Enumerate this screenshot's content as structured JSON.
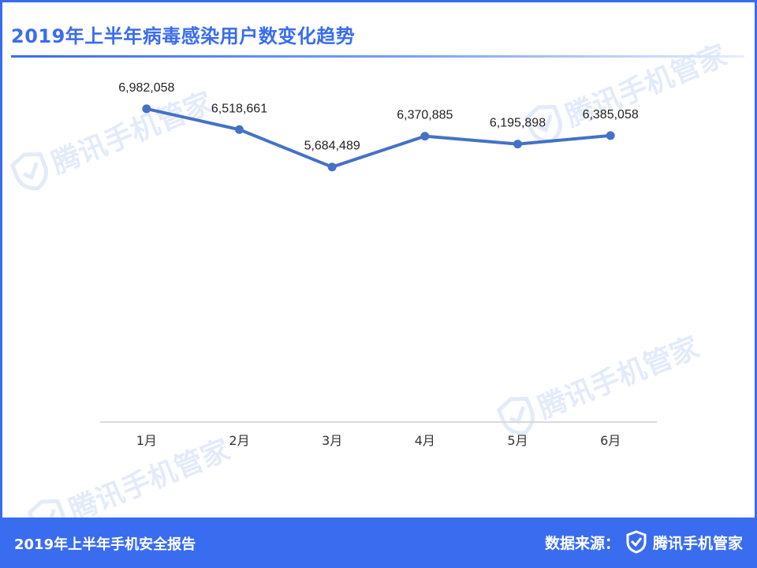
{
  "header": {
    "title": "2019年上半年病毒感染用户数变化趋势"
  },
  "watermark": {
    "text": "腾讯手机管家"
  },
  "chart_data": {
    "type": "line",
    "title": "2019年上半年病毒感染用户数变化趋势",
    "categories": [
      "1月",
      "2月",
      "3月",
      "4月",
      "5月",
      "6月"
    ],
    "series": [
      {
        "values": [
          6982058,
          6518661,
          5684489,
          6370885,
          6195898,
          6385058
        ]
      }
    ],
    "data_labels": [
      "6,982,058",
      "6,518,661",
      "5,684,489",
      "6,370,885",
      "6,195,898",
      "6,385,058"
    ],
    "ylim": [
      0,
      8000000
    ],
    "grid": false,
    "line_color": "#4472c4"
  },
  "footer": {
    "report_title": "2019年上半年手机安全报告",
    "source_label": "数据来源：",
    "brand": "腾讯手机管家"
  },
  "colors": {
    "accent": "#3a6cf0",
    "watermark": "#e3ebfa"
  }
}
